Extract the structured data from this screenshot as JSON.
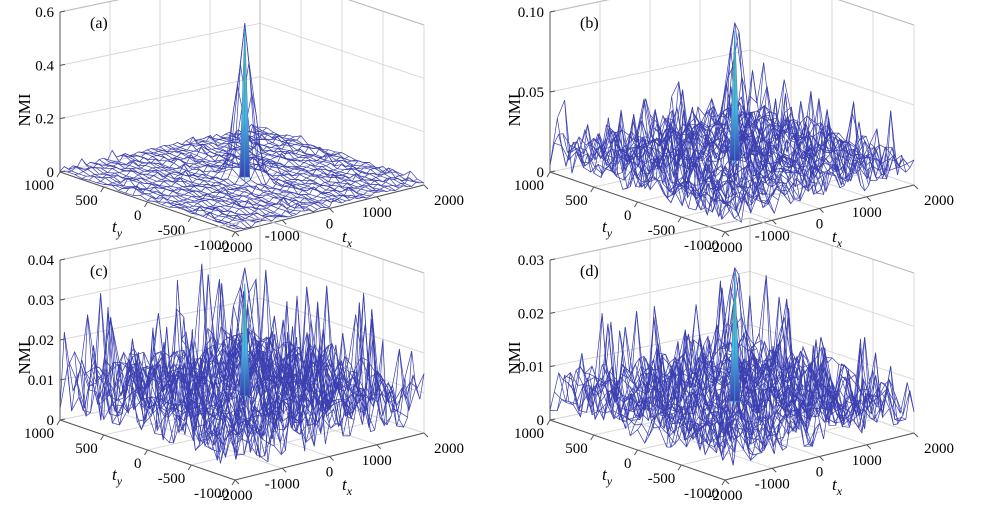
{
  "chart_data": [
    {
      "panel_label": "(a)",
      "type": "surface-mesh",
      "zlabel": "NMI",
      "xlabel": "t",
      "xlabel_sub": "x",
      "ylabel": "t",
      "ylabel_sub": "y",
      "x_ticks": [
        -2000,
        -1000,
        0,
        1000,
        2000
      ],
      "y_ticks": [
        -1000,
        -500,
        0,
        500,
        1000
      ],
      "z_ticks": [
        "0",
        "0.2",
        "0.4",
        "0.6"
      ],
      "z_tick_values": [
        0,
        0.2,
        0.4,
        0.6
      ],
      "xlim": [
        -2000,
        2000
      ],
      "ylim": [
        -1000,
        1000
      ],
      "zlim": [
        0,
        0.6
      ],
      "peak": {
        "x": 0,
        "y": 0,
        "value": 0.57
      },
      "background_level": 0.01,
      "mesh_color": "#3b3fb0"
    },
    {
      "panel_label": "(b)",
      "type": "surface-mesh",
      "zlabel": "NMI",
      "xlabel": "t",
      "xlabel_sub": "x",
      "ylabel": "t",
      "ylabel_sub": "y",
      "x_ticks": [
        -2000,
        -1000,
        0,
        1000,
        2000
      ],
      "y_ticks": [
        -1000,
        -500,
        0,
        500,
        1000
      ],
      "z_ticks": [
        "0",
        "0.05",
        "0.10"
      ],
      "z_tick_values": [
        0,
        0.05,
        0.1
      ],
      "xlim": [
        -2000,
        2000
      ],
      "ylim": [
        -1000,
        1000
      ],
      "zlim": [
        0,
        0.1
      ],
      "peak": {
        "x": 0,
        "y": 0,
        "value": 0.093
      },
      "background_level": 0.012,
      "mesh_color": "#3b3fb0"
    },
    {
      "panel_label": "(c)",
      "type": "surface-mesh",
      "zlabel": "NMI",
      "xlabel": "t",
      "xlabel_sub": "x",
      "ylabel": "t",
      "ylabel_sub": "y",
      "x_ticks": [
        -2000,
        -1000,
        0,
        1000,
        2000
      ],
      "y_ticks": [
        -1000,
        -500,
        0,
        500,
        1000
      ],
      "z_ticks": [
        "0",
        "0.01",
        "0.02",
        "0.03",
        "0.04"
      ],
      "z_tick_values": [
        0,
        0.01,
        0.02,
        0.03,
        0.04
      ],
      "xlim": [
        -2000,
        2000
      ],
      "ylim": [
        -1000,
        1000
      ],
      "zlim": [
        0,
        0.04
      ],
      "peak": {
        "x": 0,
        "y": 0,
        "value": 0.036
      },
      "background_level": 0.008,
      "mesh_color": "#3b3fb0"
    },
    {
      "panel_label": "(d)",
      "type": "surface-mesh",
      "zlabel": "NMI",
      "xlabel": "t",
      "xlabel_sub": "x",
      "ylabel": "t",
      "ylabel_sub": "y",
      "x_ticks": [
        -2000,
        -1000,
        0,
        1000,
        2000
      ],
      "y_ticks": [
        -1000,
        -500,
        0,
        500,
        1000
      ],
      "z_ticks": [
        "0",
        "0.01",
        "0.02",
        "0.03"
      ],
      "z_tick_values": [
        0,
        0.01,
        0.02,
        0.03
      ],
      "xlim": [
        -2000,
        2000
      ],
      "ylim": [
        -1000,
        1000
      ],
      "zlim": [
        0,
        0.03
      ],
      "peak": {
        "x": 0,
        "y": 0,
        "value": 0.029
      },
      "background_level": 0.005,
      "mesh_color": "#3b3fb0"
    }
  ]
}
